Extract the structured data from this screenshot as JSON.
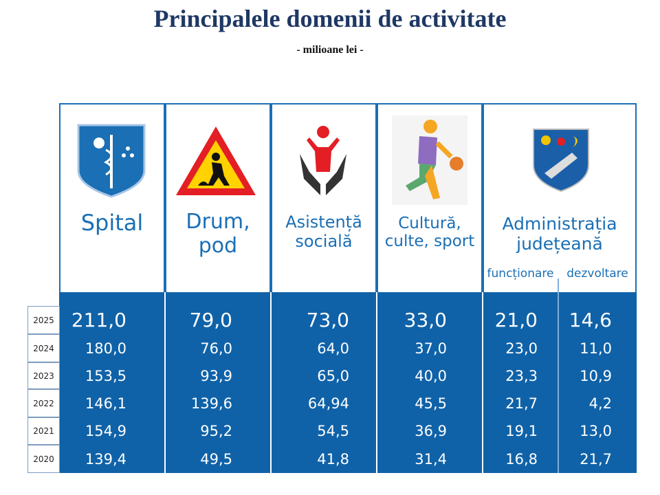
{
  "header": {
    "title": "Principalele domenii de activitate",
    "subtitle": "- milioane lei -"
  },
  "table": {
    "columns": [
      "Spital",
      "Drum, pod",
      "Asistență socială",
      "Cultură, culte, sport",
      "Administrația județeană"
    ],
    "subcolumns": [
      "funcționare",
      "dezvoltare"
    ],
    "years": [
      "2025",
      "2024",
      "2023",
      "2022",
      "2021",
      "2020"
    ],
    "rows": [
      [
        "211,0",
        "79,0",
        "73,0",
        "33,0",
        "21,0",
        "14,6"
      ],
      [
        "180,0",
        "76,0",
        "64,0",
        "37,0",
        "23,0",
        "11,0"
      ],
      [
        "153,5",
        "93,9",
        "65,0",
        "40,0",
        "23,3",
        "10,9"
      ],
      [
        "146,1",
        "139,6",
        "64,94",
        "45,5",
        "21,7",
        "4,2"
      ],
      [
        "154,9",
        "95,2",
        "54,5",
        "36,9",
        "19,1",
        "13,0"
      ],
      [
        "139,4",
        "49,5",
        "41,8",
        "31,4",
        "16,8",
        "21,7"
      ]
    ]
  }
}
